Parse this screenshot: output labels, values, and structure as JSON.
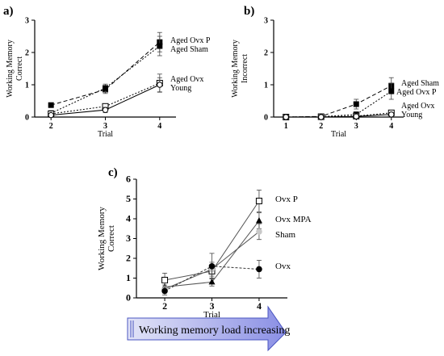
{
  "panels": {
    "a": "a)",
    "b": "b)",
    "c": "c)"
  },
  "arrow": {
    "label": "Working memory load increasing",
    "color_start": "#e2e4f7",
    "color_end": "#8a8fe5",
    "border": "#4a55c0"
  },
  "chart_data": [
    {
      "id": "a",
      "type": "line",
      "xlabel": "Trial",
      "ylabel": [
        "Working Memory",
        "Correct"
      ],
      "x": [
        2,
        3,
        4
      ],
      "xticks": [
        2,
        3,
        4
      ],
      "xlim": [
        1.7,
        4.3
      ],
      "ylim": [
        0,
        3
      ],
      "yticks": [
        0,
        1,
        2,
        3
      ],
      "series": [
        {
          "name": "Aged Ovx P",
          "values": [
            0.37,
            0.85,
            2.32
          ],
          "errors": [
            0.05,
            0.12,
            0.3
          ],
          "marker": "square-filled",
          "dash": "5,3"
        },
        {
          "name": "Aged Sham",
          "values": [
            0.12,
            0.9,
            2.2
          ],
          "errors": [
            0.05,
            0.12,
            0.3
          ],
          "marker": "square-filled",
          "dash": "2,2"
        },
        {
          "name": "Aged Ovx",
          "values": [
            0.1,
            0.33,
            1.05
          ],
          "errors": [
            0.04,
            0.08,
            0.28
          ],
          "marker": "square-open",
          "dash": "2,2"
        },
        {
          "name": "Young",
          "values": [
            0.06,
            0.22,
            1.0
          ],
          "errors": [
            0.03,
            0.08,
            0.22
          ],
          "marker": "circle-open",
          "dash": ""
        }
      ]
    },
    {
      "id": "b",
      "type": "line",
      "xlabel": "Trial",
      "ylabel": [
        "Working Memory",
        "Incorrect"
      ],
      "x": [
        1,
        2,
        3,
        4
      ],
      "xticks": [
        1,
        2,
        3,
        4
      ],
      "xlim": [
        0.65,
        4.35
      ],
      "ylim": [
        0,
        3
      ],
      "yticks": [
        0,
        1,
        2,
        3
      ],
      "series": [
        {
          "name": "Aged Sham",
          "values": [
            0.0,
            0.02,
            0.4,
            0.97
          ],
          "errors": [
            0.02,
            0.03,
            0.15,
            0.25
          ],
          "marker": "square-filled",
          "dash": "5,3"
        },
        {
          "name": "Aged Ovx  P",
          "values": [
            0.0,
            0.01,
            0.08,
            0.8
          ],
          "errors": [
            0.02,
            0.03,
            0.08,
            0.25
          ],
          "marker": "square-filled",
          "dash": "2,2"
        },
        {
          "name": "Aged Ovx",
          "values": [
            0.0,
            0.01,
            0.03,
            0.13
          ],
          "errors": [
            0.02,
            0.02,
            0.04,
            0.08
          ],
          "marker": "square-open",
          "dash": "2,2"
        },
        {
          "name": "Young",
          "values": [
            0.0,
            0.0,
            0.02,
            0.08
          ],
          "errors": [
            0.02,
            0.02,
            0.03,
            0.05
          ],
          "marker": "circle-open",
          "dash": ""
        }
      ]
    },
    {
      "id": "c",
      "type": "line",
      "xlabel": "Trial",
      "ylabel": [
        "Working Memory",
        "Correct"
      ],
      "x": [
        2,
        3,
        4
      ],
      "xticks": [
        2,
        3,
        4
      ],
      "xlim": [
        1.4,
        4.6
      ],
      "ylim": [
        0,
        6
      ],
      "yticks": [
        0,
        1,
        2,
        3,
        4,
        5,
        6
      ],
      "series": [
        {
          "name": "Ovx P",
          "values": [
            0.9,
            1.35,
            4.9
          ],
          "errors": [
            0.35,
            0.35,
            0.55
          ],
          "marker": "square-open",
          "dash": "",
          "color": "#555555"
        },
        {
          "name": "Ovx MPA",
          "values": [
            0.55,
            0.8,
            3.9
          ],
          "errors": [
            0.2,
            0.2,
            0.4
          ],
          "marker": "triangle-filled",
          "dash": "",
          "color": "#555555"
        },
        {
          "name": "Sham",
          "values": [
            0.45,
            1.45,
            3.35
          ],
          "errors": [
            0.2,
            0.35,
            0.4
          ],
          "marker": "circle-gray",
          "dash": "",
          "color": "#555555"
        },
        {
          "name": "Ovx",
          "values": [
            0.35,
            1.6,
            1.45
          ],
          "errors": [
            0.2,
            0.65,
            0.45
          ],
          "marker": "circle-filled",
          "dash": "3,2",
          "color": "#333333"
        }
      ]
    }
  ]
}
